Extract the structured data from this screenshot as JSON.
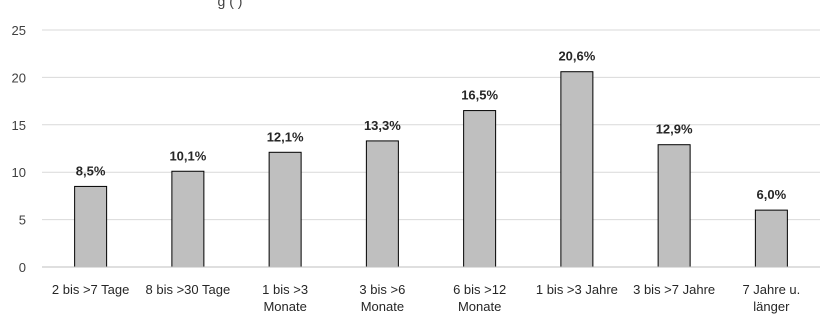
{
  "chart_data": {
    "type": "bar",
    "title_fragment": "g   (     )",
    "categories": [
      [
        "2 bis >7 Tage"
      ],
      [
        "8 bis >30 Tage"
      ],
      [
        "1 bis >3",
        "Monate"
      ],
      [
        "3 bis >6",
        "Monate"
      ],
      [
        "6 bis >12",
        "Monate"
      ],
      [
        "1 bis >3 Jahre"
      ],
      [
        "3 bis >7 Jahre"
      ],
      [
        "7 Jahre u.",
        "länger"
      ]
    ],
    "values": [
      8.5,
      10.1,
      12.1,
      13.3,
      16.5,
      20.6,
      12.9,
      6.0
    ],
    "data_labels": [
      "8,5%",
      "10,1%",
      "12,1%",
      "13,3%",
      "16,5%",
      "20,6%",
      "12,9%",
      "6,0%"
    ],
    "ylim": [
      0,
      25
    ],
    "yticks": [
      0,
      5,
      10,
      15,
      20,
      25
    ],
    "ytick_labels": [
      "0",
      "5",
      "10",
      "15",
      "20",
      "25"
    ],
    "grid": true,
    "colors": {
      "bar_fill": "#bfbfbf",
      "bar_stroke": "#000000",
      "grid": "#d9d9d9",
      "axis": "#bfbfbf"
    }
  }
}
